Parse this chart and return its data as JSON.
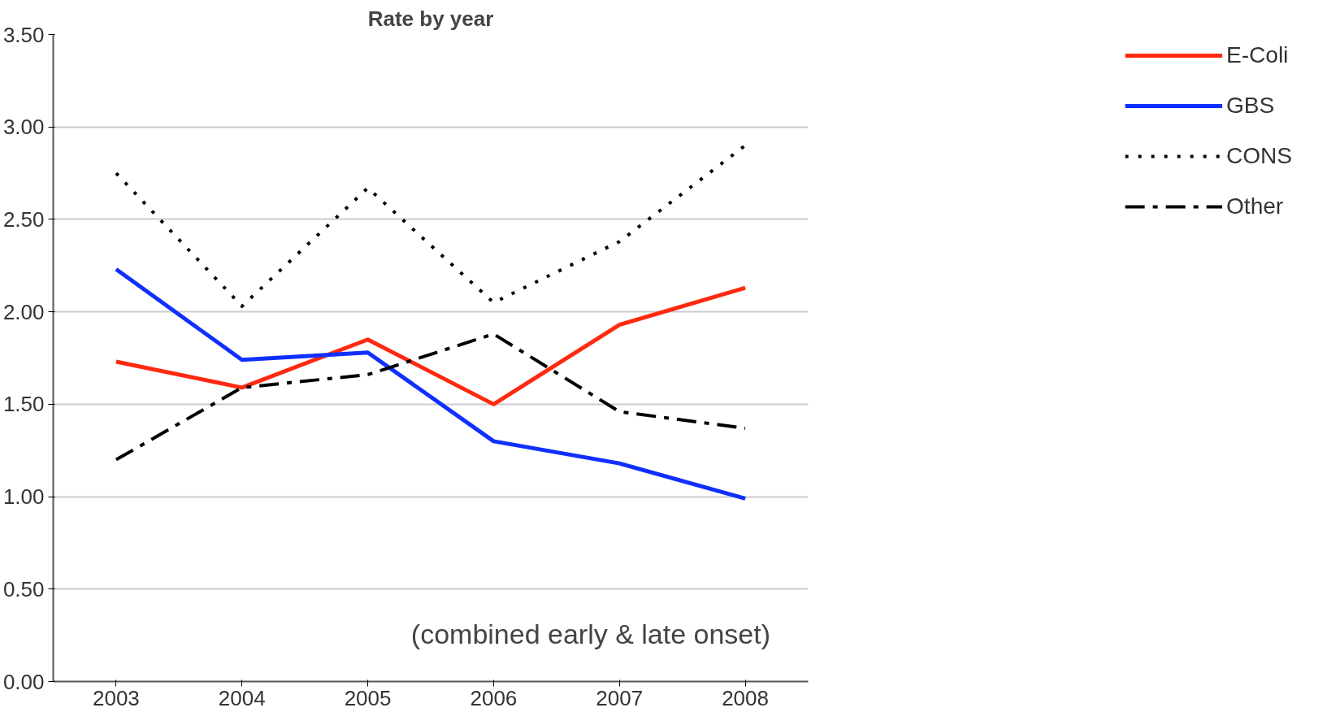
{
  "chart_data": {
    "type": "line",
    "title": "Rate by year",
    "categories": [
      "2003",
      "2004",
      "2005",
      "2006",
      "2007",
      "2008"
    ],
    "series": [
      {
        "name": "E-Coli",
        "color": "#ff2a10",
        "line_style": "solid",
        "values": [
          1.73,
          1.59,
          1.85,
          1.5,
          1.93,
          2.13
        ]
      },
      {
        "name": "GBS",
        "color": "#1030ff",
        "line_style": "solid",
        "values": [
          2.23,
          1.74,
          1.78,
          1.3,
          1.18,
          0.99
        ]
      },
      {
        "name": "CONS",
        "color": "#000000",
        "line_style": "dotted",
        "values": [
          2.75,
          2.03,
          2.67,
          2.05,
          2.38,
          2.9
        ]
      },
      {
        "name": "Other",
        "color": "#000000",
        "line_style": "dashed",
        "values": [
          1.2,
          1.59,
          1.66,
          1.88,
          1.46,
          1.37
        ]
      }
    ],
    "ylim": [
      0,
      3.5
    ],
    "yticks": [
      {
        "value": 0,
        "label": "0.00"
      },
      {
        "value": 0.5,
        "label": "0.50"
      },
      {
        "value": 1,
        "label": "1.00"
      },
      {
        "value": 1.5,
        "label": "1.50"
      },
      {
        "value": 2,
        "label": "2.00"
      },
      {
        "value": 2.5,
        "label": "2.50"
      },
      {
        "value": 3,
        "label": "3.00"
      },
      {
        "value": 3.5,
        "label": "3.50"
      }
    ],
    "grid": "y",
    "legend": "right",
    "marker": "none",
    "annotations": [
      "(combined early & late onset)"
    ]
  }
}
